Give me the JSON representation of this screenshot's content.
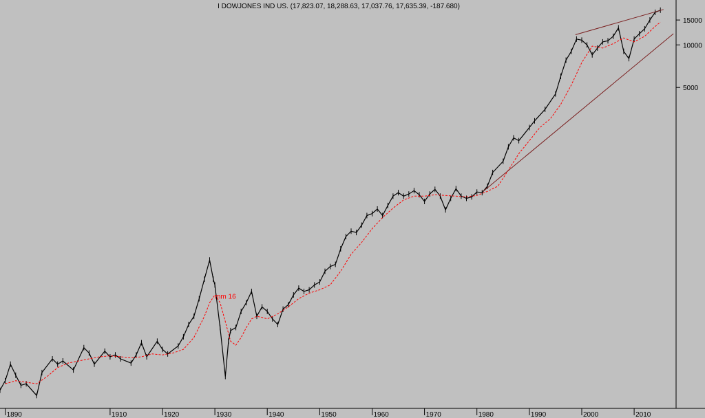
{
  "chart_data": {
    "type": "line",
    "title": "I DOWJONES IND US. (17,823.07, 18,288.63, 17,037.76, 17,635.39, -187.680)",
    "xlabel": "",
    "ylabel": "",
    "y_scale": "log",
    "xlim": [
      1889,
      2018
    ],
    "ylim": [
      28,
      19000
    ],
    "x_ticks": [
      "1890",
      "1910",
      "1920",
      "1930",
      "1940",
      "1950",
      "1960",
      "1970",
      "1980",
      "1990",
      "2000",
      "2010"
    ],
    "y_ticks": [
      {
        "value": 15000,
        "label": "15000"
      },
      {
        "value": 10000,
        "label": "10000"
      },
      {
        "value": 5000,
        "label": "5000"
      }
    ],
    "grid": false,
    "legend": "none",
    "colors": {
      "price": "#000000",
      "moving_average": "#ff0000",
      "channel": "#7a1f1f",
      "background": "#c0c0c0"
    },
    "series": [
      {
        "name": "",
        "style": "price",
        "x": [
          1889,
          1890,
          1891,
          1892,
          1893,
          1894,
          1896,
          1897,
          1899,
          1900,
          1901,
          1903,
          1905,
          1906,
          1907,
          1909,
          1910,
          1911,
          1912,
          1914,
          1915,
          1916,
          1917,
          1919,
          1920,
          1921,
          1923,
          1924,
          1925,
          1926,
          1927,
          1928,
          1929,
          1929.7,
          1930,
          1931,
          1932,
          1932.6,
          1933,
          1934,
          1935,
          1936,
          1937,
          1938,
          1939,
          1940,
          1941,
          1942,
          1943,
          1944,
          1945,
          1946,
          1947,
          1948,
          1949,
          1950,
          1951,
          1952,
          1953,
          1954,
          1955,
          1956,
          1957,
          1958,
          1959,
          1960,
          1961,
          1962,
          1963,
          1964,
          1965,
          1966,
          1967,
          1968,
          1969,
          1970,
          1971,
          1972,
          1973,
          1974,
          1975,
          1976,
          1977,
          1978,
          1979,
          1980,
          1981,
          1982,
          1983,
          1985,
          1986,
          1987,
          1988,
          1990,
          1991,
          1993,
          1995,
          1996,
          1997,
          1998,
          1999,
          2000,
          2001,
          2002,
          2003,
          2004,
          2005,
          2006,
          2007,
          2008,
          2009,
          2010,
          2011,
          2012,
          2013,
          2014,
          2015
        ],
        "values": [
          36,
          42,
          55,
          46,
          39,
          40,
          33,
          48,
          60,
          55,
          58,
          50,
          72,
          66,
          55,
          68,
          62,
          64,
          60,
          56,
          64,
          78,
          62,
          80,
          70,
          65,
          74,
          86,
          105,
          120,
          160,
          220,
          300,
          220,
          200,
          100,
          45,
          80,
          95,
          100,
          130,
          150,
          180,
          120,
          140,
          130,
          115,
          105,
          135,
          145,
          170,
          190,
          180,
          185,
          200,
          210,
          250,
          270,
          280,
          360,
          440,
          480,
          470,
          530,
          620,
          640,
          690,
          620,
          730,
          850,
          900,
          850,
          880,
          930,
          870,
          780,
          880,
          950,
          850,
          680,
          820,
          960,
          850,
          820,
          840,
          910,
          900,
          1000,
          1250,
          1500,
          1900,
          2200,
          2100,
          2600,
          2900,
          3500,
          4500,
          6000,
          7800,
          9000,
          11000,
          10800,
          10000,
          8500,
          9500,
          10500,
          10700,
          11500,
          13200,
          9000,
          8000,
          11000,
          12000,
          13000,
          15000,
          17000,
          17600
        ]
      },
      {
        "name": "mm 16",
        "style": "moving_average",
        "x": [
          1890,
          1892,
          1894,
          1896,
          1898,
          1900,
          1902,
          1904,
          1906,
          1908,
          1910,
          1912,
          1914,
          1916,
          1918,
          1920,
          1922,
          1924,
          1926,
          1928,
          1929,
          1930,
          1931,
          1932,
          1933,
          1934,
          1935,
          1936,
          1937,
          1938,
          1939,
          1940,
          1942,
          1944,
          1946,
          1948,
          1950,
          1952,
          1954,
          1956,
          1958,
          1960,
          1962,
          1964,
          1966,
          1968,
          1970,
          1972,
          1974,
          1976,
          1978,
          1980,
          1982,
          1984,
          1986,
          1988,
          1990,
          1992,
          1994,
          1996,
          1998,
          2000,
          2002,
          2004,
          2006,
          2008,
          2010,
          2012,
          2014,
          2015
        ],
        "values": [
          40,
          42,
          41,
          40,
          45,
          52,
          56,
          58,
          60,
          62,
          63,
          62,
          61,
          62,
          65,
          64,
          66,
          70,
          85,
          120,
          150,
          170,
          150,
          110,
          80,
          75,
          85,
          100,
          115,
          120,
          118,
          115,
          125,
          140,
          160,
          175,
          185,
          200,
          250,
          330,
          400,
          500,
          600,
          700,
          800,
          850,
          850,
          870,
          860,
          850,
          840,
          860,
          920,
          1000,
          1300,
          1700,
          2100,
          2600,
          3000,
          3800,
          5200,
          7500,
          9800,
          9500,
          10200,
          11200,
          10500,
          11500,
          13500,
          14500
        ]
      }
    ],
    "trendlines": [
      {
        "name": "",
        "style": "channel",
        "x": [
          1981.2,
          2017.5
        ],
        "values": [
          920,
          12000
        ]
      },
      {
        "name": "",
        "style": "channel",
        "x": [
          1998.8,
          2015.6
        ],
        "values": [
          11800,
          17800
        ]
      }
    ],
    "annotations": [
      {
        "text": "mm 16",
        "x": 1930,
        "y": 160
      }
    ]
  }
}
